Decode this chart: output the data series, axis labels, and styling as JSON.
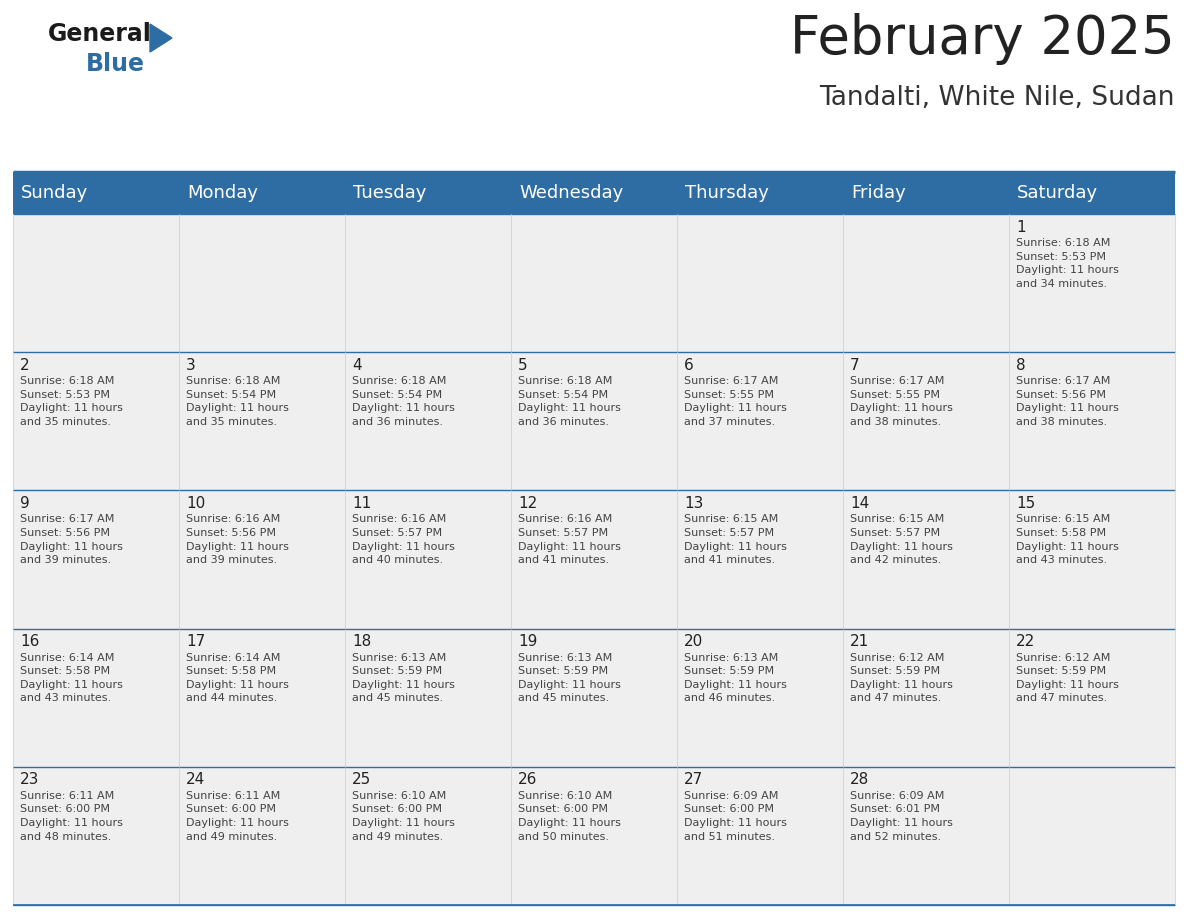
{
  "title": "February 2025",
  "subtitle": "Tandalti, White Nile, Sudan",
  "header_color": "#2e6da4",
  "header_text_color": "#ffffff",
  "cell_bg_color": "#efefef",
  "day_headers": [
    "Sunday",
    "Monday",
    "Tuesday",
    "Wednesday",
    "Thursday",
    "Friday",
    "Saturday"
  ],
  "title_fontsize": 38,
  "subtitle_fontsize": 19,
  "header_fontsize": 13,
  "day_num_fontsize": 11,
  "info_fontsize": 8.0,
  "logo_general_fontsize": 17,
  "logo_blue_fontsize": 17,
  "weeks": [
    [
      {
        "day": null,
        "info": ""
      },
      {
        "day": null,
        "info": ""
      },
      {
        "day": null,
        "info": ""
      },
      {
        "day": null,
        "info": ""
      },
      {
        "day": null,
        "info": ""
      },
      {
        "day": null,
        "info": ""
      },
      {
        "day": 1,
        "info": "Sunrise: 6:18 AM\nSunset: 5:53 PM\nDaylight: 11 hours\nand 34 minutes."
      }
    ],
    [
      {
        "day": 2,
        "info": "Sunrise: 6:18 AM\nSunset: 5:53 PM\nDaylight: 11 hours\nand 35 minutes."
      },
      {
        "day": 3,
        "info": "Sunrise: 6:18 AM\nSunset: 5:54 PM\nDaylight: 11 hours\nand 35 minutes."
      },
      {
        "day": 4,
        "info": "Sunrise: 6:18 AM\nSunset: 5:54 PM\nDaylight: 11 hours\nand 36 minutes."
      },
      {
        "day": 5,
        "info": "Sunrise: 6:18 AM\nSunset: 5:54 PM\nDaylight: 11 hours\nand 36 minutes."
      },
      {
        "day": 6,
        "info": "Sunrise: 6:17 AM\nSunset: 5:55 PM\nDaylight: 11 hours\nand 37 minutes."
      },
      {
        "day": 7,
        "info": "Sunrise: 6:17 AM\nSunset: 5:55 PM\nDaylight: 11 hours\nand 38 minutes."
      },
      {
        "day": 8,
        "info": "Sunrise: 6:17 AM\nSunset: 5:56 PM\nDaylight: 11 hours\nand 38 minutes."
      }
    ],
    [
      {
        "day": 9,
        "info": "Sunrise: 6:17 AM\nSunset: 5:56 PM\nDaylight: 11 hours\nand 39 minutes."
      },
      {
        "day": 10,
        "info": "Sunrise: 6:16 AM\nSunset: 5:56 PM\nDaylight: 11 hours\nand 39 minutes."
      },
      {
        "day": 11,
        "info": "Sunrise: 6:16 AM\nSunset: 5:57 PM\nDaylight: 11 hours\nand 40 minutes."
      },
      {
        "day": 12,
        "info": "Sunrise: 6:16 AM\nSunset: 5:57 PM\nDaylight: 11 hours\nand 41 minutes."
      },
      {
        "day": 13,
        "info": "Sunrise: 6:15 AM\nSunset: 5:57 PM\nDaylight: 11 hours\nand 41 minutes."
      },
      {
        "day": 14,
        "info": "Sunrise: 6:15 AM\nSunset: 5:57 PM\nDaylight: 11 hours\nand 42 minutes."
      },
      {
        "day": 15,
        "info": "Sunrise: 6:15 AM\nSunset: 5:58 PM\nDaylight: 11 hours\nand 43 minutes."
      }
    ],
    [
      {
        "day": 16,
        "info": "Sunrise: 6:14 AM\nSunset: 5:58 PM\nDaylight: 11 hours\nand 43 minutes."
      },
      {
        "day": 17,
        "info": "Sunrise: 6:14 AM\nSunset: 5:58 PM\nDaylight: 11 hours\nand 44 minutes."
      },
      {
        "day": 18,
        "info": "Sunrise: 6:13 AM\nSunset: 5:59 PM\nDaylight: 11 hours\nand 45 minutes."
      },
      {
        "day": 19,
        "info": "Sunrise: 6:13 AM\nSunset: 5:59 PM\nDaylight: 11 hours\nand 45 minutes."
      },
      {
        "day": 20,
        "info": "Sunrise: 6:13 AM\nSunset: 5:59 PM\nDaylight: 11 hours\nand 46 minutes."
      },
      {
        "day": 21,
        "info": "Sunrise: 6:12 AM\nSunset: 5:59 PM\nDaylight: 11 hours\nand 47 minutes."
      },
      {
        "day": 22,
        "info": "Sunrise: 6:12 AM\nSunset: 5:59 PM\nDaylight: 11 hours\nand 47 minutes."
      }
    ],
    [
      {
        "day": 23,
        "info": "Sunrise: 6:11 AM\nSunset: 6:00 PM\nDaylight: 11 hours\nand 48 minutes."
      },
      {
        "day": 24,
        "info": "Sunrise: 6:11 AM\nSunset: 6:00 PM\nDaylight: 11 hours\nand 49 minutes."
      },
      {
        "day": 25,
        "info": "Sunrise: 6:10 AM\nSunset: 6:00 PM\nDaylight: 11 hours\nand 49 minutes."
      },
      {
        "day": 26,
        "info": "Sunrise: 6:10 AM\nSunset: 6:00 PM\nDaylight: 11 hours\nand 50 minutes."
      },
      {
        "day": 27,
        "info": "Sunrise: 6:09 AM\nSunset: 6:00 PM\nDaylight: 11 hours\nand 51 minutes."
      },
      {
        "day": 28,
        "info": "Sunrise: 6:09 AM\nSunset: 6:01 PM\nDaylight: 11 hours\nand 52 minutes."
      },
      {
        "day": null,
        "info": ""
      }
    ]
  ]
}
